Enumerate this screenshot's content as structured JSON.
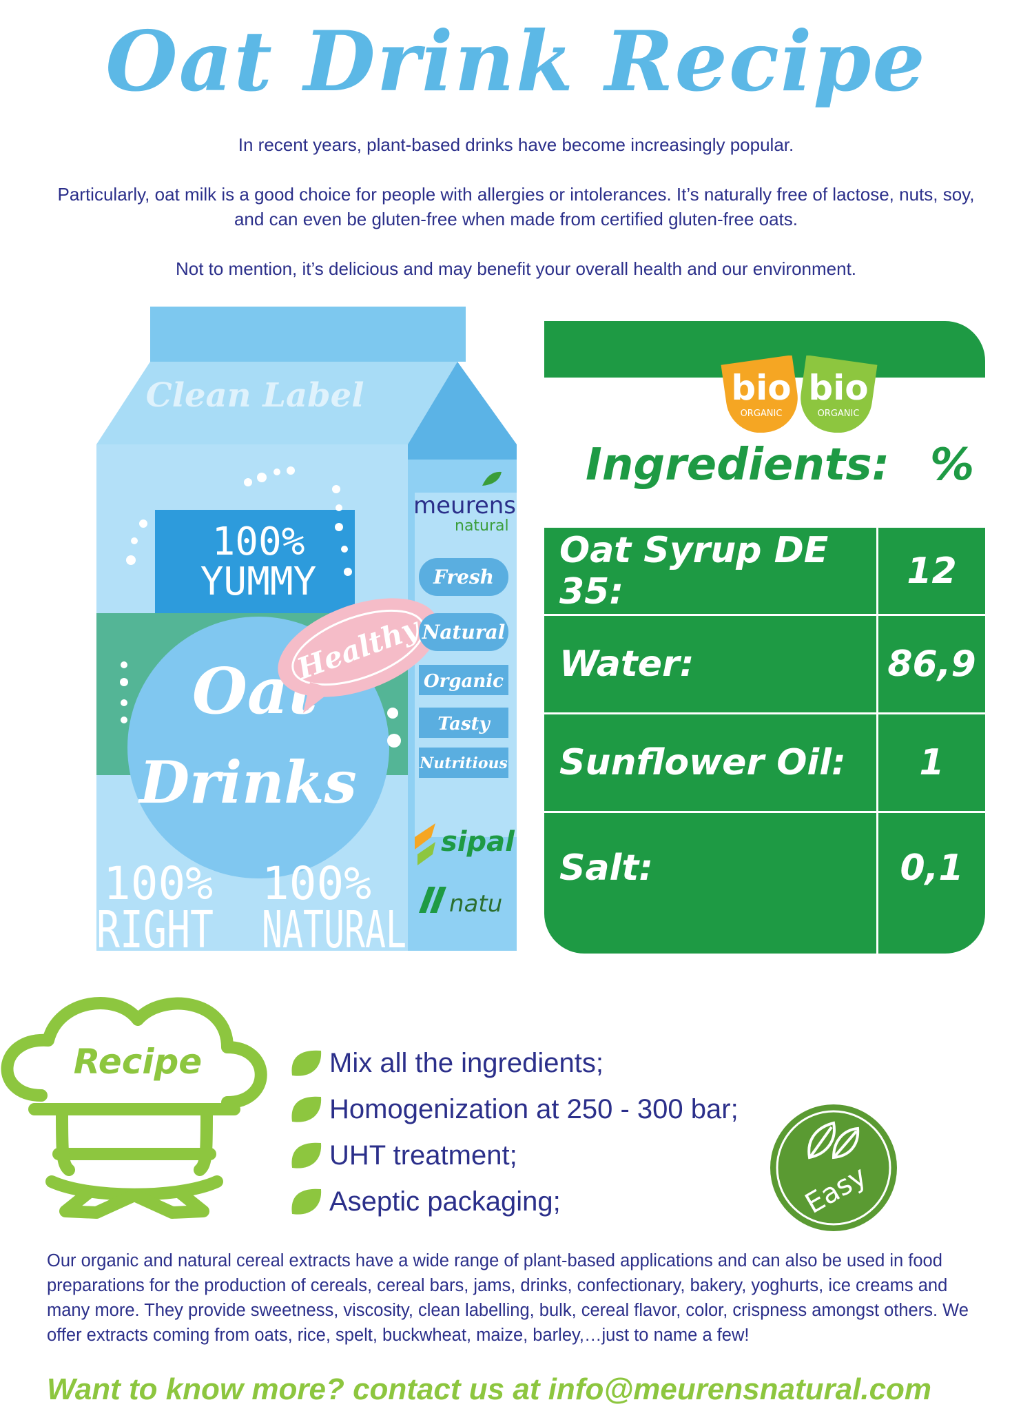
{
  "title": "Oat Drink Recipe",
  "intro": [
    "In recent years, plant-based drinks have become increasingly popular.",
    "Particularly, oat milk is a good choice for people with allergies or intolerances. It’s naturally free of lactose, nuts, soy,",
    "and can even be gluten-free when made from certified gluten-free oats.",
    "Not to mention, it’s delicious and may benefit your overall health and our environment."
  ],
  "carton": {
    "clean_label": "Clean Label",
    "yummy_pct": "100%",
    "yummy": "YUMMY",
    "healthy": "Healthy",
    "oat": "Oat",
    "drinks": "Drinks",
    "right_pct": "100%",
    "right": "RIGHT",
    "natural_pct": "100%",
    "natural": "NATURAL",
    "brand": "meurens",
    "brand_sub": "natural",
    "tags": [
      "Fresh",
      "Natural",
      "Organic",
      "Tasty",
      "Nutritious"
    ],
    "sipal": "sipal",
    "natu": "natu"
  },
  "bio_badges": [
    {
      "word": "bio",
      "sub": "ORGANIC",
      "color": "#f5a623"
    },
    {
      "word": "bio",
      "sub": "ORGANIC",
      "color": "#8dc63f"
    }
  ],
  "ingredients": {
    "title": "Ingredients:",
    "percent_header": "%",
    "rows": [
      {
        "name": "Oat Syrup DE 35:",
        "value": "12"
      },
      {
        "name": "Water:",
        "value": "86,9"
      },
      {
        "name": "Sunflower Oil:",
        "value": "1"
      },
      {
        "name": "Salt:",
        "value": "0,1"
      }
    ]
  },
  "recipe": {
    "label": "Recipe",
    "steps": [
      "Mix all the ingredients;",
      "Homogenization at 250 - 300 bar;",
      "UHT treatment;",
      "Aseptic packaging;"
    ],
    "easy": "Easy"
  },
  "about": "Our organic and natural cereal extracts have a wide range of plant-based applications and can also be used in food preparations for the production of cereals, cereal bars, jams, drinks, confectionary, bakery, yoghurts, ice creams and many more. They provide sweetness, viscosity, clean labelling, bulk, cereal flavor, color, crispness amongst others. We offer extracts coming from oats, rice, spelt, buckwheat, maize, barley,…just to name a few!",
  "contact": "Want to know more? contact us at info@meurensnatural.com",
  "colors": {
    "title_blue": "#5cb8e6",
    "text_navy": "#2b2f8a",
    "panel_green": "#1e9a44",
    "lime": "#8dc63f",
    "easy_green": "#5a9a32"
  }
}
